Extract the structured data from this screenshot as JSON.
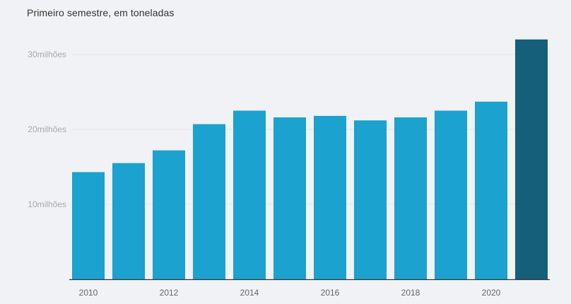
{
  "subtitle": "Primeiro semestre, em toneladas",
  "chart_data": {
    "type": "bar",
    "title": "",
    "subtitle": "Primeiro semestre, em toneladas",
    "xlabel": "",
    "ylabel": "",
    "categories": [
      "2010",
      "2011",
      "2012",
      "2013",
      "2014",
      "2015",
      "2016",
      "2017",
      "2018",
      "2019",
      "2020",
      "2021"
    ],
    "values": [
      14.3,
      15.5,
      17.2,
      20.7,
      22.5,
      21.6,
      21.8,
      21.2,
      21.6,
      22.5,
      23.7,
      32.0
    ],
    "ylim": [
      0,
      30
    ],
    "y_ticks": [
      {
        "value": 10,
        "label": "10milhões"
      },
      {
        "value": 20,
        "label": "20milhões"
      },
      {
        "value": 30,
        "label": "30milhões"
      }
    ],
    "x_tick_labels": [
      "2010",
      "2012",
      "2014",
      "2016",
      "2018",
      "2020"
    ],
    "grid": true,
    "colors": {
      "bar": "#1ba2ce",
      "highlight": "#155f7a",
      "grid": "#e2e5e9",
      "axis": "#333333"
    },
    "highlight_category": "2021"
  }
}
